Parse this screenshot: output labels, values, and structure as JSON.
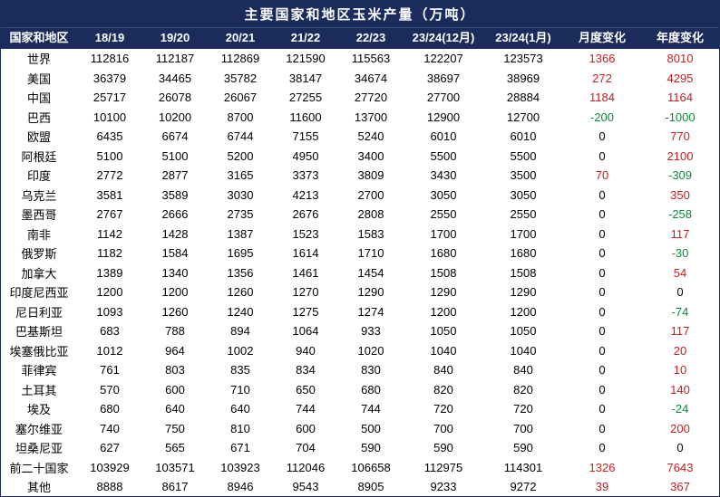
{
  "title": "主要国家和地区玉米产量（万吨）",
  "colors": {
    "header_bg": "#1a2b5c",
    "header_text": "#ffffff",
    "positive": "#c41e1e",
    "negative": "#0a8a3a",
    "zero": "#000000",
    "body_bg": "#ffffff",
    "body_text": "#000000"
  },
  "columns": [
    {
      "label": "国家和地区"
    },
    {
      "label": "18/19"
    },
    {
      "label": "19/20"
    },
    {
      "label": "20/21"
    },
    {
      "label": "21/22"
    },
    {
      "label": "22/23"
    },
    {
      "label": "23/24\n(12月)"
    },
    {
      "label": "23/24\n(1月)"
    },
    {
      "label": "月度\n变化"
    },
    {
      "label": "年度\n变化"
    }
  ],
  "rows": [
    {
      "region": "世界",
      "v": [
        "112816",
        "112187",
        "112869",
        "121590",
        "115563",
        "122207",
        "123573"
      ],
      "mdelta": 1366,
      "ydelta": 8010
    },
    {
      "region": "美国",
      "v": [
        "36379",
        "34465",
        "35782",
        "38147",
        "34674",
        "38697",
        "38969"
      ],
      "mdelta": 272,
      "ydelta": 4295
    },
    {
      "region": "中国",
      "v": [
        "25717",
        "26078",
        "26067",
        "27255",
        "27720",
        "27700",
        "28884"
      ],
      "mdelta": 1184,
      "ydelta": 1164
    },
    {
      "region": "巴西",
      "v": [
        "10100",
        "10200",
        "8700",
        "11600",
        "13700",
        "12900",
        "12700"
      ],
      "mdelta": -200,
      "ydelta": -1000
    },
    {
      "region": "欧盟",
      "v": [
        "6435",
        "6674",
        "6744",
        "7155",
        "5240",
        "6010",
        "6010"
      ],
      "mdelta": 0,
      "ydelta": 770
    },
    {
      "region": "阿根廷",
      "v": [
        "5100",
        "5100",
        "5200",
        "4950",
        "3400",
        "5500",
        "5500"
      ],
      "mdelta": 0,
      "ydelta": 2100
    },
    {
      "region": "印度",
      "v": [
        "2772",
        "2877",
        "3165",
        "3373",
        "3809",
        "3430",
        "3500"
      ],
      "mdelta": 70,
      "ydelta": -309
    },
    {
      "region": "乌克兰",
      "v": [
        "3581",
        "3589",
        "3030",
        "4213",
        "2700",
        "3050",
        "3050"
      ],
      "mdelta": 0,
      "ydelta": 350
    },
    {
      "region": "墨西哥",
      "v": [
        "2767",
        "2666",
        "2735",
        "2676",
        "2808",
        "2550",
        "2550"
      ],
      "mdelta": 0,
      "ydelta": -258
    },
    {
      "region": "南非",
      "v": [
        "1142",
        "1428",
        "1387",
        "1523",
        "1583",
        "1700",
        "1700"
      ],
      "mdelta": 0,
      "ydelta": 117
    },
    {
      "region": "俄罗斯",
      "v": [
        "1182",
        "1584",
        "1695",
        "1614",
        "1710",
        "1680",
        "1680"
      ],
      "mdelta": 0,
      "ydelta": -30
    },
    {
      "region": "加拿大",
      "v": [
        "1389",
        "1340",
        "1356",
        "1461",
        "1454",
        "1508",
        "1508"
      ],
      "mdelta": 0,
      "ydelta": 54
    },
    {
      "region": "印度尼西亚",
      "v": [
        "1200",
        "1200",
        "1260",
        "1270",
        "1290",
        "1290",
        "1290"
      ],
      "mdelta": 0,
      "ydelta": 0
    },
    {
      "region": "尼日利亚",
      "v": [
        "1093",
        "1260",
        "1240",
        "1275",
        "1274",
        "1200",
        "1200"
      ],
      "mdelta": 0,
      "ydelta": -74
    },
    {
      "region": "巴基斯坦",
      "v": [
        "683",
        "788",
        "894",
        "1064",
        "933",
        "1050",
        "1050"
      ],
      "mdelta": 0,
      "ydelta": 117
    },
    {
      "region": "埃塞俄比亚",
      "v": [
        "1012",
        "964",
        "1002",
        "940",
        "1020",
        "1040",
        "1040"
      ],
      "mdelta": 0,
      "ydelta": 20
    },
    {
      "region": "菲律宾",
      "v": [
        "761",
        "803",
        "835",
        "834",
        "830",
        "840",
        "840"
      ],
      "mdelta": 0,
      "ydelta": 10
    },
    {
      "region": "土耳其",
      "v": [
        "570",
        "600",
        "710",
        "650",
        "680",
        "820",
        "820"
      ],
      "mdelta": 0,
      "ydelta": 140
    },
    {
      "region": "埃及",
      "v": [
        "680",
        "640",
        "640",
        "744",
        "744",
        "720",
        "720"
      ],
      "mdelta": 0,
      "ydelta": -24
    },
    {
      "region": "塞尔维亚",
      "v": [
        "740",
        "750",
        "810",
        "600",
        "500",
        "700",
        "700"
      ],
      "mdelta": 0,
      "ydelta": 200
    },
    {
      "region": "坦桑尼亚",
      "v": [
        "627",
        "565",
        "671",
        "704",
        "590",
        "590",
        "590"
      ],
      "mdelta": 0,
      "ydelta": 0
    },
    {
      "region": "前二十国家",
      "v": [
        "103929",
        "103571",
        "103923",
        "112046",
        "106658",
        "112975",
        "114301"
      ],
      "mdelta": 1326,
      "ydelta": 7643
    },
    {
      "region": "其他",
      "v": [
        "8888",
        "8617",
        "8946",
        "9543",
        "8905",
        "9233",
        "9272"
      ],
      "mdelta": 39,
      "ydelta": 367
    }
  ]
}
